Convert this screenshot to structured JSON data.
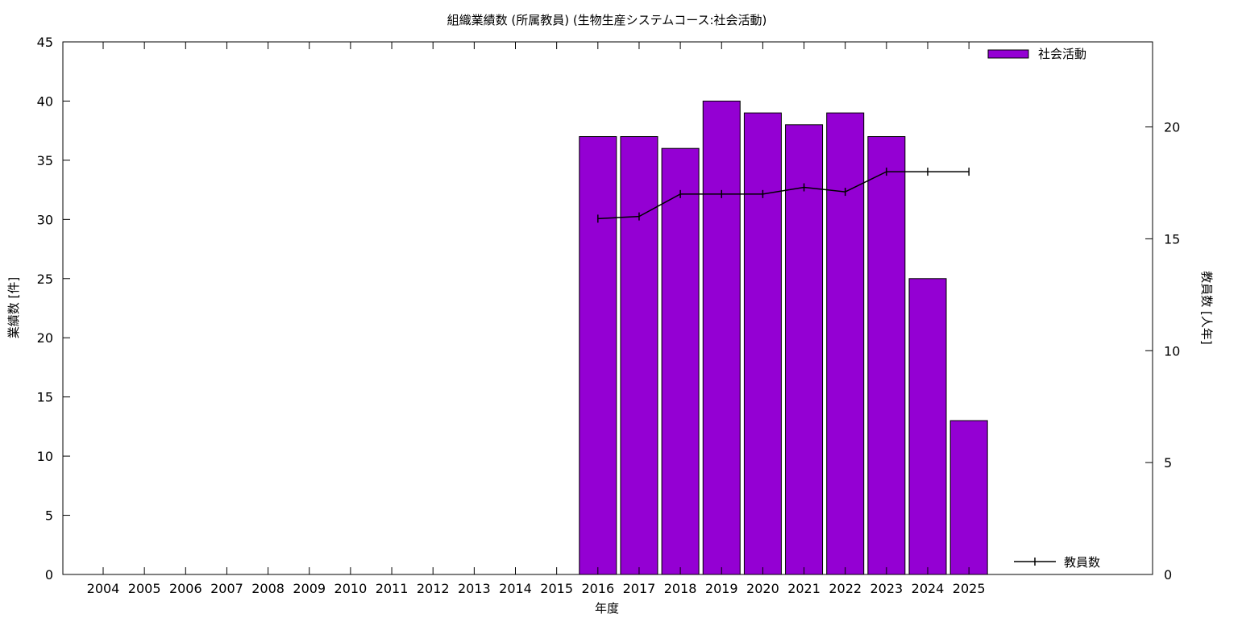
{
  "chart_data": {
    "type": "bar",
    "title": "組織業績数 (所属教員) (生物生産システムコース:社会活動)",
    "xlabel": "年度",
    "ylabel": "業績数 [件]",
    "y2label": "教員数 [人年]",
    "categories": [
      "2004",
      "2005",
      "2006",
      "2007",
      "2008",
      "2009",
      "2010",
      "2011",
      "2012",
      "2013",
      "2014",
      "2015",
      "2016",
      "2017",
      "2018",
      "2019",
      "2020",
      "2021",
      "2022",
      "2023",
      "2024",
      "2025"
    ],
    "bar_series": {
      "name": "社会活動",
      "color": "#9400d3",
      "values": [
        null,
        null,
        null,
        null,
        null,
        null,
        null,
        null,
        null,
        null,
        null,
        null,
        37,
        37,
        36,
        40,
        39,
        38,
        39,
        37,
        25,
        13
      ]
    },
    "line_series": {
      "name": "教員数",
      "color": "#000000",
      "axis": "y2",
      "values": [
        null,
        null,
        null,
        null,
        null,
        null,
        null,
        null,
        null,
        null,
        null,
        null,
        15.9,
        16.0,
        17.0,
        17.0,
        17.0,
        17.3,
        17.1,
        18.0,
        18.0,
        18.0
      ]
    },
    "ylim": [
      0,
      45
    ],
    "yticks": [
      0,
      5,
      10,
      15,
      20,
      25,
      30,
      35,
      40,
      45
    ],
    "y2lim": [
      0,
      23.8
    ],
    "y2ticks": [
      0,
      5,
      10,
      15,
      20
    ],
    "grid": false,
    "legend_bar_position": "top-right",
    "legend_line_position": "bottom-right"
  }
}
